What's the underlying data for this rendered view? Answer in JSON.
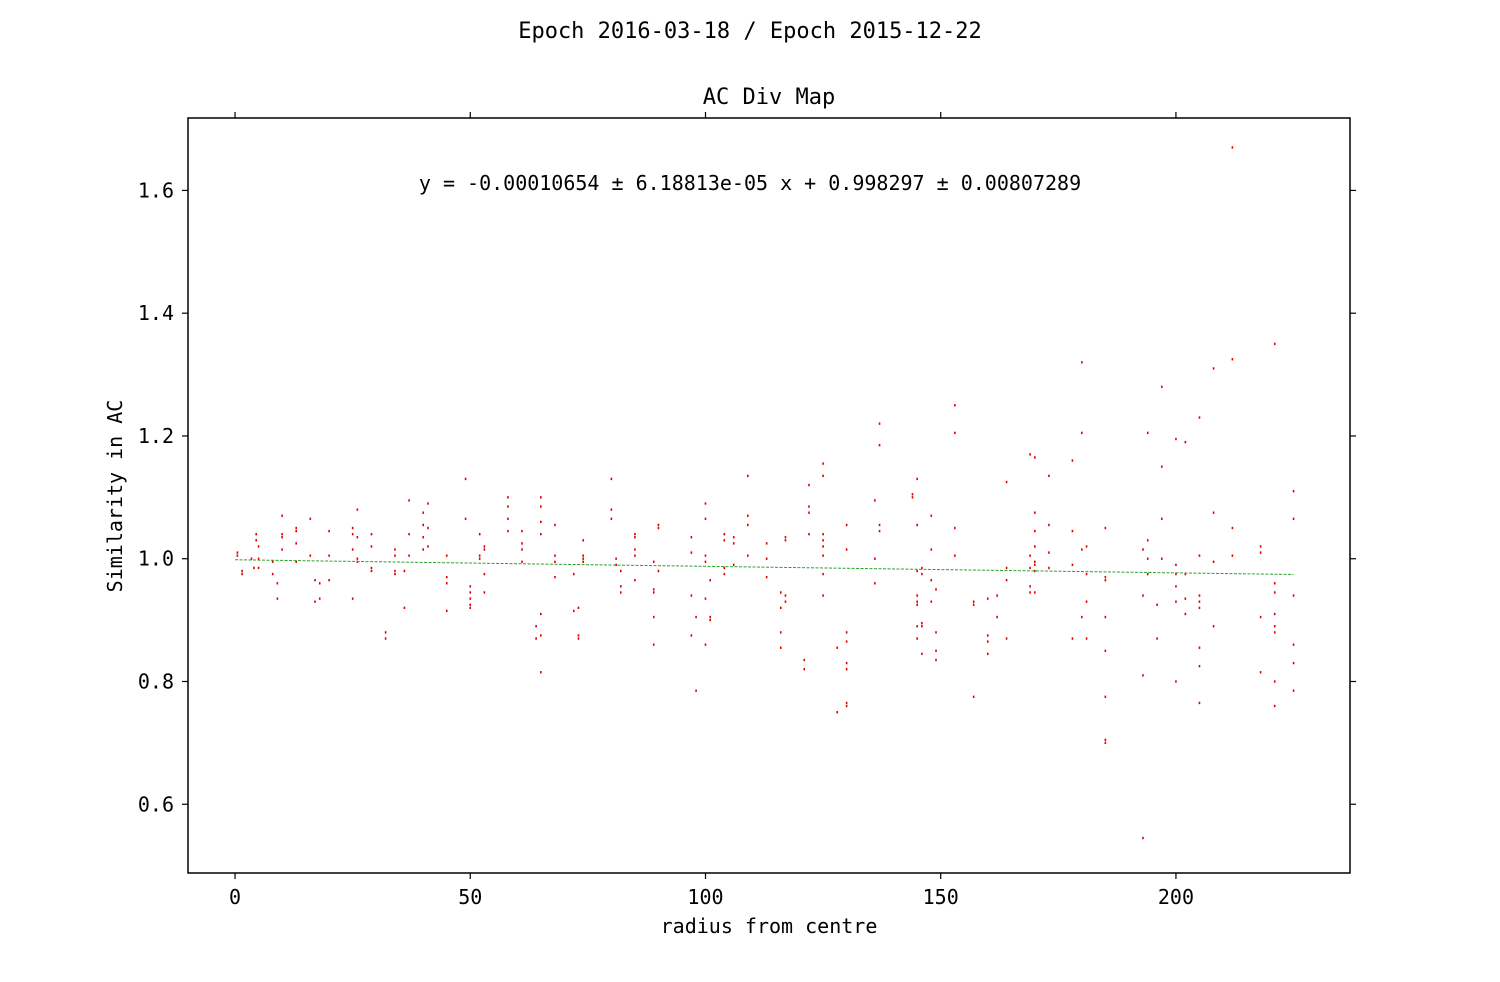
{
  "chart_data": {
    "type": "scatter",
    "suptitle": "Epoch 2016-03-18 / Epoch 2015-12-22",
    "title": "AC Div Map",
    "xlabel": "radius from centre",
    "ylabel": "Similarity in AC",
    "annotation": "y = -0.00010654 ± 6.18813e-05 x + 0.998297 ± 0.00807289",
    "xlim": [
      -10,
      237
    ],
    "ylim": [
      0.488,
      1.718
    ],
    "xticks": [
      0,
      50,
      100,
      150,
      200
    ],
    "yticks": [
      0.6,
      0.8,
      1.0,
      1.2,
      1.4,
      1.6
    ],
    "ytick_labels": [
      "0.6",
      "0.8",
      "1.0",
      "1.2",
      "1.4",
      "1.6"
    ],
    "grid": false,
    "point_color": "#e00000",
    "fit_color": "#2ca02c",
    "fit_line": {
      "slope": -0.00010654,
      "intercept": 0.998297,
      "x_range": [
        0,
        225
      ]
    },
    "points": [
      [
        0.5,
        1.005
      ],
      [
        0.5,
        1.01
      ],
      [
        1.5,
        0.975
      ],
      [
        1.5,
        0.98
      ],
      [
        3.5,
        1.0
      ],
      [
        4,
        0.985
      ],
      [
        4.5,
        1.03
      ],
      [
        4.5,
        1.04
      ],
      [
        5,
        1.0
      ],
      [
        5,
        1.02
      ],
      [
        5,
        0.985
      ],
      [
        8,
        0.995
      ],
      [
        8,
        0.975
      ],
      [
        9,
        0.935
      ],
      [
        9,
        0.96
      ],
      [
        10,
        1.07
      ],
      [
        10,
        1.04
      ],
      [
        10,
        1.035
      ],
      [
        10,
        1.015
      ],
      [
        13,
        1.05
      ],
      [
        13,
        1.045
      ],
      [
        13,
        1.025
      ],
      [
        13,
        0.995
      ],
      [
        16,
        1.065
      ],
      [
        16,
        1.005
      ],
      [
        17,
        0.965
      ],
      [
        17,
        0.93
      ],
      [
        18,
        0.96
      ],
      [
        18,
        0.935
      ],
      [
        20,
        1.045
      ],
      [
        20,
        1.005
      ],
      [
        20,
        0.965
      ],
      [
        25,
        1.05
      ],
      [
        25,
        1.04
      ],
      [
        25,
        1.015
      ],
      [
        25,
        0.935
      ],
      [
        26,
        1.08
      ],
      [
        26,
        1.035
      ],
      [
        26,
        1.0
      ],
      [
        26,
        0.995
      ],
      [
        29,
        1.04
      ],
      [
        29,
        1.02
      ],
      [
        29,
        0.985
      ],
      [
        29,
        0.98
      ],
      [
        32,
        0.88
      ],
      [
        32,
        0.87
      ],
      [
        34,
        1.015
      ],
      [
        34,
        1.005
      ],
      [
        34,
        0.98
      ],
      [
        34,
        0.975
      ],
      [
        36,
        0.92
      ],
      [
        36,
        0.98
      ],
      [
        37,
        1.095
      ],
      [
        37,
        1.04
      ],
      [
        37,
        1.005
      ],
      [
        40,
        1.075
      ],
      [
        40,
        1.055
      ],
      [
        40,
        1.035
      ],
      [
        40,
        1.015
      ],
      [
        41,
        1.09
      ],
      [
        41,
        1.05
      ],
      [
        41,
        1.02
      ],
      [
        45,
        1.005
      ],
      [
        45,
        0.97
      ],
      [
        45,
        0.96
      ],
      [
        45,
        0.915
      ],
      [
        49,
        1.13
      ],
      [
        49,
        1.065
      ],
      [
        50,
        0.955
      ],
      [
        50,
        0.945
      ],
      [
        50,
        0.935
      ],
      [
        50,
        0.925
      ],
      [
        50,
        0.92
      ],
      [
        52,
        1.04
      ],
      [
        52,
        1.005
      ],
      [
        52,
        1.0
      ],
      [
        53,
        1.02
      ],
      [
        53,
        1.015
      ],
      [
        53,
        0.975
      ],
      [
        53,
        0.945
      ],
      [
        58,
        1.1
      ],
      [
        58,
        1.085
      ],
      [
        58,
        1.065
      ],
      [
        58,
        1.045
      ],
      [
        61,
        1.045
      ],
      [
        61,
        1.025
      ],
      [
        61,
        1.015
      ],
      [
        61,
        0.995
      ],
      [
        65,
        1.1
      ],
      [
        65,
        1.085
      ],
      [
        65,
        1.06
      ],
      [
        65,
        1.04
      ],
      [
        64,
        0.89
      ],
      [
        64,
        0.87
      ],
      [
        65,
        0.91
      ],
      [
        65,
        0.875
      ],
      [
        65,
        0.815
      ],
      [
        68,
        1.055
      ],
      [
        68,
        1.005
      ],
      [
        68,
        0.995
      ],
      [
        68,
        0.97
      ],
      [
        72,
        0.975
      ],
      [
        72,
        0.915
      ],
      [
        73,
        0.92
      ],
      [
        73,
        0.875
      ],
      [
        73,
        0.87
      ],
      [
        74,
        1.03
      ],
      [
        74,
        1.005
      ],
      [
        74,
        1.0
      ],
      [
        74,
        0.995
      ],
      [
        80,
        1.13
      ],
      [
        80,
        1.08
      ],
      [
        80,
        1.065
      ],
      [
        81,
        1.0
      ],
      [
        81,
        0.99
      ],
      [
        82,
        0.98
      ],
      [
        82,
        0.955
      ],
      [
        82,
        0.945
      ],
      [
        85,
        1.04
      ],
      [
        85,
        1.035
      ],
      [
        85,
        1.015
      ],
      [
        85,
        1.005
      ],
      [
        85,
        0.965
      ],
      [
        89,
        0.995
      ],
      [
        89,
        0.95
      ],
      [
        89,
        0.945
      ],
      [
        89,
        0.905
      ],
      [
        89,
        0.86
      ],
      [
        90,
        1.055
      ],
      [
        90,
        1.05
      ],
      [
        90,
        0.98
      ],
      [
        97,
        1.035
      ],
      [
        97,
        1.01
      ],
      [
        97,
        0.94
      ],
      [
        97,
        0.875
      ],
      [
        98,
        0.905
      ],
      [
        98,
        0.785
      ],
      [
        100,
        1.09
      ],
      [
        100,
        1.065
      ],
      [
        100,
        1.005
      ],
      [
        100,
        0.995
      ],
      [
        100,
        0.935
      ],
      [
        100,
        0.86
      ],
      [
        101,
        0.965
      ],
      [
        101,
        0.905
      ],
      [
        101,
        0.9
      ],
      [
        104,
        1.04
      ],
      [
        104,
        1.03
      ],
      [
        104,
        0.985
      ],
      [
        104,
        0.975
      ],
      [
        106,
        1.035
      ],
      [
        106,
        1.025
      ],
      [
        106,
        0.99
      ],
      [
        109,
        1.135
      ],
      [
        109,
        1.07
      ],
      [
        109,
        1.055
      ],
      [
        109,
        1.005
      ],
      [
        113,
        1.025
      ],
      [
        113,
        1.0
      ],
      [
        113,
        0.97
      ],
      [
        116,
        0.945
      ],
      [
        116,
        0.92
      ],
      [
        116,
        0.88
      ],
      [
        116,
        0.855
      ],
      [
        117,
        1.035
      ],
      [
        117,
        1.03
      ],
      [
        117,
        0.94
      ],
      [
        117,
        0.93
      ],
      [
        121,
        0.835
      ],
      [
        121,
        0.82
      ],
      [
        122,
        1.12
      ],
      [
        122,
        1.085
      ],
      [
        122,
        1.075
      ],
      [
        122,
        1.04
      ],
      [
        125,
        1.155
      ],
      [
        125,
        1.135
      ],
      [
        125,
        1.04
      ],
      [
        125,
        1.03
      ],
      [
        125,
        1.02
      ],
      [
        125,
        1.005
      ],
      [
        125,
        0.975
      ],
      [
        125,
        0.94
      ],
      [
        128,
        0.855
      ],
      [
        128,
        0.75
      ],
      [
        130,
        1.055
      ],
      [
        130,
        1.015
      ],
      [
        130,
        0.88
      ],
      [
        130,
        0.865
      ],
      [
        130,
        0.83
      ],
      [
        130,
        0.82
      ],
      [
        130,
        0.765
      ],
      [
        130,
        0.76
      ],
      [
        136,
        1.095
      ],
      [
        136,
        1.0
      ],
      [
        136,
        0.96
      ],
      [
        137,
        1.22
      ],
      [
        137,
        1.185
      ],
      [
        137,
        1.055
      ],
      [
        137,
        1.045
      ],
      [
        144,
        1.105
      ],
      [
        144,
        1.1
      ],
      [
        145,
        1.13
      ],
      [
        145,
        1.055
      ],
      [
        145,
        0.98
      ],
      [
        145,
        0.94
      ],
      [
        145,
        0.93
      ],
      [
        145,
        0.925
      ],
      [
        145,
        0.89
      ],
      [
        145,
        0.87
      ],
      [
        146,
        0.985
      ],
      [
        146,
        0.975
      ],
      [
        146,
        0.895
      ],
      [
        146,
        0.89
      ],
      [
        146,
        0.845
      ],
      [
        148,
        1.07
      ],
      [
        148,
        1.015
      ],
      [
        148,
        0.965
      ],
      [
        148,
        0.93
      ],
      [
        149,
        0.95
      ],
      [
        149,
        0.88
      ],
      [
        149,
        0.85
      ],
      [
        149,
        0.835
      ],
      [
        153,
        1.25
      ],
      [
        153,
        1.205
      ],
      [
        153,
        1.05
      ],
      [
        153,
        1.005
      ],
      [
        157,
        0.93
      ],
      [
        157,
        0.925
      ],
      [
        157,
        0.775
      ],
      [
        160,
        0.935
      ],
      [
        160,
        0.875
      ],
      [
        160,
        0.865
      ],
      [
        160,
        0.845
      ],
      [
        162,
        0.94
      ],
      [
        162,
        0.905
      ],
      [
        164,
        1.125
      ],
      [
        164,
        0.985
      ],
      [
        164,
        0.965
      ],
      [
        164,
        0.87
      ],
      [
        169,
        1.17
      ],
      [
        169,
        1.005
      ],
      [
        169,
        0.985
      ],
      [
        169,
        0.955
      ],
      [
        169,
        0.945
      ],
      [
        170,
        1.165
      ],
      [
        170,
        1.075
      ],
      [
        170,
        1.045
      ],
      [
        170,
        1.02
      ],
      [
        170,
        0.995
      ],
      [
        170,
        0.99
      ],
      [
        170,
        0.98
      ],
      [
        170,
        0.945
      ],
      [
        173,
        1.135
      ],
      [
        173,
        1.055
      ],
      [
        173,
        1.01
      ],
      [
        173,
        0.985
      ],
      [
        178,
        1.16
      ],
      [
        178,
        1.045
      ],
      [
        178,
        0.99
      ],
      [
        178,
        0.87
      ],
      [
        180,
        1.32
      ],
      [
        180,
        1.205
      ],
      [
        180,
        1.015
      ],
      [
        180,
        0.905
      ],
      [
        181,
        1.02
      ],
      [
        181,
        0.975
      ],
      [
        181,
        0.93
      ],
      [
        181,
        0.87
      ],
      [
        185,
        1.05
      ],
      [
        185,
        0.97
      ],
      [
        185,
        0.965
      ],
      [
        185,
        0.905
      ],
      [
        185,
        0.85
      ],
      [
        185,
        0.775
      ],
      [
        185,
        0.705
      ],
      [
        185,
        0.7
      ],
      [
        193,
        1.015
      ],
      [
        193,
        0.94
      ],
      [
        193,
        0.81
      ],
      [
        193,
        0.545
      ],
      [
        194,
        1.205
      ],
      [
        194,
        1.03
      ],
      [
        194,
        1.0
      ],
      [
        194,
        0.975
      ],
      [
        196,
        0.925
      ],
      [
        196,
        0.87
      ],
      [
        197,
        1.28
      ],
      [
        197,
        1.15
      ],
      [
        197,
        1.065
      ],
      [
        197,
        1.0
      ],
      [
        200,
        1.195
      ],
      [
        200,
        0.99
      ],
      [
        200,
        0.975
      ],
      [
        200,
        0.955
      ],
      [
        200,
        0.93
      ],
      [
        200,
        0.8
      ],
      [
        202,
        1.19
      ],
      [
        202,
        0.975
      ],
      [
        202,
        0.935
      ],
      [
        202,
        0.91
      ],
      [
        205,
        1.23
      ],
      [
        205,
        1.005
      ],
      [
        205,
        0.94
      ],
      [
        205,
        0.93
      ],
      [
        205,
        0.92
      ],
      [
        205,
        0.855
      ],
      [
        205,
        0.825
      ],
      [
        205,
        0.765
      ],
      [
        208,
        1.31
      ],
      [
        208,
        1.075
      ],
      [
        208,
        0.995
      ],
      [
        208,
        0.89
      ],
      [
        212,
        1.67
      ],
      [
        212,
        1.325
      ],
      [
        212,
        1.05
      ],
      [
        212,
        1.005
      ],
      [
        218,
        1.02
      ],
      [
        218,
        1.01
      ],
      [
        218,
        0.905
      ],
      [
        218,
        0.815
      ],
      [
        221,
        1.35
      ],
      [
        221,
        0.96
      ],
      [
        221,
        0.945
      ],
      [
        221,
        0.91
      ],
      [
        221,
        0.89
      ],
      [
        221,
        0.88
      ],
      [
        221,
        0.8
      ],
      [
        221,
        0.76
      ],
      [
        225,
        1.11
      ],
      [
        225,
        1.065
      ],
      [
        225,
        0.94
      ],
      [
        225,
        0.86
      ],
      [
        225,
        0.83
      ],
      [
        225,
        0.785
      ]
    ]
  }
}
